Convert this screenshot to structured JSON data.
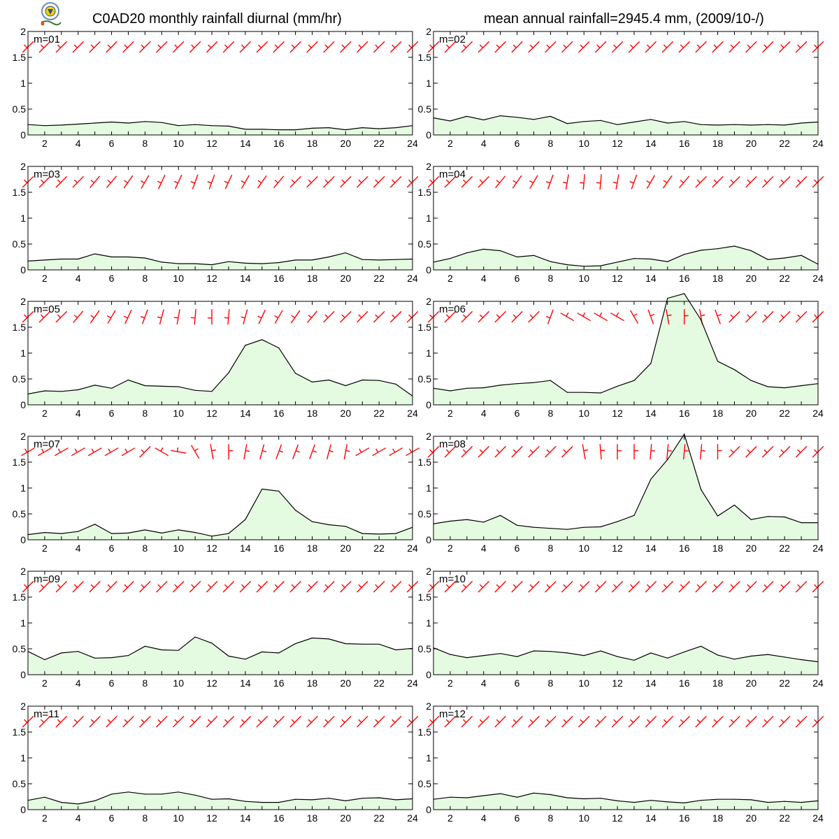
{
  "header": {
    "title_left": "C0AD20 monthly rainfall diurnal (mm/hr)",
    "title_right": "mean annual rainfall=2945.4 mm, (2009/10-/)"
  },
  "colors": {
    "fill": "#e5fbe1",
    "line": "#000000",
    "wind": "#ff0000",
    "axis": "#000000"
  },
  "chart_data": [
    {
      "type": "area",
      "label": "m=01",
      "x": [
        1,
        2,
        3,
        4,
        5,
        6,
        7,
        8,
        9,
        10,
        11,
        12,
        13,
        14,
        15,
        16,
        17,
        18,
        19,
        20,
        21,
        22,
        23,
        24
      ],
      "values": [
        0.2,
        0.18,
        0.19,
        0.21,
        0.23,
        0.25,
        0.23,
        0.26,
        0.24,
        0.18,
        0.2,
        0.18,
        0.17,
        0.11,
        0.11,
        0.1,
        0.1,
        0.13,
        0.14,
        0.1,
        0.14,
        0.12,
        0.14,
        0.18
      ],
      "ylim": [
        0,
        2
      ],
      "yticks": [
        0,
        0.5,
        1,
        1.5,
        2
      ],
      "xticks": [
        2,
        4,
        6,
        8,
        10,
        12,
        14,
        16,
        18,
        20,
        22,
        24
      ],
      "wind_dir_deg": [
        225,
        225,
        225,
        225,
        225,
        225,
        225,
        225,
        225,
        225,
        225,
        225,
        225,
        225,
        225,
        225,
        225,
        225,
        225,
        225,
        225,
        225,
        225,
        225
      ]
    },
    {
      "type": "area",
      "label": "m=02",
      "x": [
        1,
        2,
        3,
        4,
        5,
        6,
        7,
        8,
        9,
        10,
        11,
        12,
        13,
        14,
        15,
        16,
        17,
        18,
        19,
        20,
        21,
        22,
        23,
        24
      ],
      "values": [
        0.33,
        0.27,
        0.36,
        0.29,
        0.37,
        0.34,
        0.3,
        0.36,
        0.22,
        0.26,
        0.28,
        0.2,
        0.25,
        0.3,
        0.23,
        0.26,
        0.2,
        0.19,
        0.2,
        0.19,
        0.2,
        0.19,
        0.23,
        0.25
      ],
      "ylim": [
        0,
        2
      ],
      "yticks": [
        0,
        0.5,
        1,
        1.5,
        2
      ],
      "xticks": [
        2,
        4,
        6,
        8,
        10,
        12,
        14,
        16,
        18,
        20,
        22,
        24
      ],
      "wind_dir_deg": [
        225,
        225,
        225,
        225,
        225,
        225,
        225,
        225,
        225,
        225,
        225,
        225,
        225,
        225,
        225,
        225,
        225,
        225,
        225,
        225,
        225,
        225,
        225,
        225
      ]
    },
    {
      "type": "area",
      "label": "m=03",
      "x": [
        1,
        2,
        3,
        4,
        5,
        6,
        7,
        8,
        9,
        10,
        11,
        12,
        13,
        14,
        15,
        16,
        17,
        18,
        19,
        20,
        21,
        22,
        23,
        24
      ],
      "values": [
        0.17,
        0.19,
        0.21,
        0.21,
        0.31,
        0.25,
        0.25,
        0.23,
        0.15,
        0.12,
        0.12,
        0.1,
        0.16,
        0.13,
        0.12,
        0.14,
        0.19,
        0.19,
        0.25,
        0.33,
        0.2,
        0.19,
        0.2,
        0.21
      ],
      "ylim": [
        0,
        2
      ],
      "yticks": [
        0,
        0.5,
        1,
        1.5,
        2
      ],
      "xticks": [
        2,
        4,
        6,
        8,
        10,
        12,
        14,
        16,
        18,
        20,
        22,
        24
      ],
      "wind_dir_deg": [
        225,
        225,
        225,
        225,
        220,
        220,
        215,
        210,
        205,
        205,
        200,
        200,
        205,
        210,
        215,
        220,
        225,
        225,
        225,
        225,
        225,
        225,
        225,
        225
      ]
    },
    {
      "type": "area",
      "label": "m=04",
      "x": [
        1,
        2,
        3,
        4,
        5,
        6,
        7,
        8,
        9,
        10,
        11,
        12,
        13,
        14,
        15,
        16,
        17,
        18,
        19,
        20,
        21,
        22,
        23,
        24
      ],
      "values": [
        0.15,
        0.22,
        0.33,
        0.4,
        0.37,
        0.25,
        0.28,
        0.16,
        0.1,
        0.07,
        0.08,
        0.15,
        0.22,
        0.21,
        0.16,
        0.3,
        0.38,
        0.41,
        0.46,
        0.37,
        0.2,
        0.23,
        0.28,
        0.11
      ],
      "ylim": [
        0,
        2
      ],
      "yticks": [
        0,
        0.5,
        1,
        1.5,
        2
      ],
      "xticks": [
        2,
        4,
        6,
        8,
        10,
        12,
        14,
        16,
        18,
        20,
        22,
        24
      ],
      "wind_dir_deg": [
        225,
        225,
        225,
        225,
        220,
        215,
        210,
        200,
        190,
        185,
        185,
        190,
        200,
        210,
        215,
        220,
        225,
        225,
        225,
        225,
        225,
        225,
        225,
        225
      ]
    },
    {
      "type": "area",
      "label": "m=05",
      "x": [
        1,
        2,
        3,
        4,
        5,
        6,
        7,
        8,
        9,
        10,
        11,
        12,
        13,
        14,
        15,
        16,
        17,
        18,
        19,
        20,
        21,
        22,
        23,
        24
      ],
      "values": [
        0.21,
        0.27,
        0.26,
        0.29,
        0.38,
        0.32,
        0.48,
        0.37,
        0.36,
        0.35,
        0.28,
        0.26,
        0.62,
        1.15,
        1.26,
        1.1,
        0.61,
        0.44,
        0.48,
        0.37,
        0.48,
        0.47,
        0.4,
        0.17
      ],
      "ylim": [
        0,
        2
      ],
      "yticks": [
        0,
        0.5,
        1,
        1.5,
        2
      ],
      "xticks": [
        2,
        4,
        6,
        8,
        10,
        12,
        14,
        16,
        18,
        20,
        22,
        24
      ],
      "wind_dir_deg": [
        225,
        225,
        225,
        220,
        215,
        210,
        205,
        200,
        195,
        190,
        185,
        180,
        185,
        195,
        205,
        210,
        215,
        220,
        225,
        225,
        225,
        225,
        225,
        225
      ]
    },
    {
      "type": "area",
      "label": "m=06",
      "x": [
        1,
        2,
        3,
        4,
        5,
        6,
        7,
        8,
        9,
        10,
        11,
        12,
        13,
        14,
        15,
        16,
        17,
        18,
        19,
        20,
        21,
        22,
        23,
        24
      ],
      "values": [
        0.32,
        0.27,
        0.32,
        0.33,
        0.38,
        0.41,
        0.43,
        0.47,
        0.24,
        0.24,
        0.23,
        0.36,
        0.47,
        0.8,
        2.06,
        2.15,
        1.64,
        0.84,
        0.68,
        0.47,
        0.35,
        0.33,
        0.37,
        0.41
      ],
      "ylim": [
        0,
        2
      ],
      "yticks": [
        0,
        0.5,
        1,
        1.5,
        2
      ],
      "xticks": [
        2,
        4,
        6,
        8,
        10,
        12,
        14,
        16,
        18,
        20,
        22,
        24
      ],
      "wind_dir_deg": [
        225,
        225,
        225,
        225,
        225,
        225,
        225,
        200,
        300,
        300,
        300,
        300,
        330,
        340,
        350,
        0,
        350,
        340,
        225,
        225,
        225,
        225,
        225,
        225
      ]
    },
    {
      "type": "area",
      "label": "m=07",
      "x": [
        1,
        2,
        3,
        4,
        5,
        6,
        7,
        8,
        9,
        10,
        11,
        12,
        13,
        14,
        15,
        16,
        17,
        18,
        19,
        20,
        21,
        22,
        23,
        24
      ],
      "values": [
        0.1,
        0.14,
        0.12,
        0.16,
        0.3,
        0.12,
        0.13,
        0.19,
        0.13,
        0.19,
        0.14,
        0.07,
        0.12,
        0.39,
        0.98,
        0.94,
        0.57,
        0.35,
        0.29,
        0.26,
        0.12,
        0.11,
        0.12,
        0.24
      ],
      "ylim": [
        0,
        2
      ],
      "yticks": [
        0,
        0.5,
        1,
        1.5,
        2
      ],
      "xticks": [
        2,
        4,
        6,
        8,
        10,
        12,
        14,
        16,
        18,
        20,
        22,
        24
      ],
      "wind_dir_deg": [
        240,
        240,
        240,
        240,
        240,
        240,
        240,
        225,
        300,
        280,
        330,
        350,
        0,
        10,
        15,
        20,
        20,
        20,
        15,
        10,
        240,
        240,
        240,
        240
      ]
    },
    {
      "type": "area",
      "label": "m=08",
      "x": [
        1,
        2,
        3,
        4,
        5,
        6,
        7,
        8,
        9,
        10,
        11,
        12,
        13,
        14,
        15,
        16,
        17,
        18,
        19,
        20,
        21,
        22,
        23,
        24
      ],
      "values": [
        0.31,
        0.36,
        0.39,
        0.34,
        0.47,
        0.28,
        0.24,
        0.22,
        0.2,
        0.24,
        0.25,
        0.35,
        0.47,
        1.17,
        1.55,
        2.04,
        0.97,
        0.46,
        0.67,
        0.39,
        0.45,
        0.44,
        0.33,
        0.33
      ],
      "ylim": [
        0,
        2
      ],
      "yticks": [
        0,
        0.5,
        1,
        1.5,
        2
      ],
      "xticks": [
        2,
        4,
        6,
        8,
        10,
        12,
        14,
        16,
        18,
        20,
        22,
        24
      ],
      "wind_dir_deg": [
        225,
        225,
        225,
        225,
        225,
        225,
        225,
        225,
        225,
        350,
        355,
        0,
        0,
        5,
        5,
        5,
        5,
        0,
        225,
        225,
        225,
        225,
        225,
        225
      ]
    },
    {
      "type": "area",
      "label": "m=09",
      "x": [
        1,
        2,
        3,
        4,
        5,
        6,
        7,
        8,
        9,
        10,
        11,
        12,
        13,
        14,
        15,
        16,
        17,
        18,
        19,
        20,
        21,
        22,
        23,
        24
      ],
      "values": [
        0.45,
        0.29,
        0.42,
        0.45,
        0.32,
        0.33,
        0.37,
        0.55,
        0.48,
        0.47,
        0.73,
        0.61,
        0.36,
        0.3,
        0.44,
        0.42,
        0.6,
        0.71,
        0.69,
        0.6,
        0.59,
        0.59,
        0.48,
        0.51
      ],
      "ylim": [
        0,
        2
      ],
      "yticks": [
        0,
        0.5,
        1,
        1.5,
        2
      ],
      "xticks": [
        2,
        4,
        6,
        8,
        10,
        12,
        14,
        16,
        18,
        20,
        22,
        24
      ],
      "wind_dir_deg": [
        225,
        225,
        225,
        225,
        225,
        225,
        225,
        225,
        225,
        225,
        225,
        225,
        225,
        225,
        225,
        225,
        225,
        225,
        225,
        225,
        225,
        225,
        225,
        225
      ]
    },
    {
      "type": "area",
      "label": "m=10",
      "x": [
        1,
        2,
        3,
        4,
        5,
        6,
        7,
        8,
        9,
        10,
        11,
        12,
        13,
        14,
        15,
        16,
        17,
        18,
        19,
        20,
        21,
        22,
        23,
        24
      ],
      "values": [
        0.52,
        0.39,
        0.33,
        0.37,
        0.41,
        0.35,
        0.46,
        0.45,
        0.42,
        0.37,
        0.46,
        0.35,
        0.28,
        0.42,
        0.32,
        0.44,
        0.55,
        0.38,
        0.3,
        0.36,
        0.39,
        0.34,
        0.29,
        0.25
      ],
      "ylim": [
        0,
        2
      ],
      "yticks": [
        0,
        0.5,
        1,
        1.5,
        2
      ],
      "xticks": [
        2,
        4,
        6,
        8,
        10,
        12,
        14,
        16,
        18,
        20,
        22,
        24
      ],
      "wind_dir_deg": [
        225,
        225,
        225,
        225,
        225,
        225,
        225,
        225,
        225,
        225,
        225,
        225,
        225,
        225,
        225,
        225,
        225,
        225,
        225,
        225,
        225,
        225,
        225,
        225
      ]
    },
    {
      "type": "area",
      "label": "m=11",
      "x": [
        1,
        2,
        3,
        4,
        5,
        6,
        7,
        8,
        9,
        10,
        11,
        12,
        13,
        14,
        15,
        16,
        17,
        18,
        19,
        20,
        21,
        22,
        23,
        24
      ],
      "values": [
        0.18,
        0.24,
        0.14,
        0.11,
        0.17,
        0.3,
        0.34,
        0.3,
        0.3,
        0.34,
        0.28,
        0.2,
        0.21,
        0.16,
        0.14,
        0.14,
        0.2,
        0.19,
        0.22,
        0.17,
        0.22,
        0.23,
        0.19,
        0.21
      ],
      "ylim": [
        0,
        2
      ],
      "yticks": [
        0,
        0.5,
        1,
        1.5,
        2
      ],
      "xticks": [
        2,
        4,
        6,
        8,
        10,
        12,
        14,
        16,
        18,
        20,
        22,
        24
      ],
      "wind_dir_deg": [
        225,
        225,
        225,
        225,
        225,
        225,
        225,
        225,
        225,
        225,
        225,
        225,
        225,
        225,
        225,
        225,
        225,
        225,
        225,
        225,
        225,
        225,
        225,
        225
      ]
    },
    {
      "type": "area",
      "label": "m=12",
      "x": [
        1,
        2,
        3,
        4,
        5,
        6,
        7,
        8,
        9,
        10,
        11,
        12,
        13,
        14,
        15,
        16,
        17,
        18,
        19,
        20,
        21,
        22,
        23,
        24
      ],
      "values": [
        0.2,
        0.24,
        0.23,
        0.27,
        0.31,
        0.24,
        0.32,
        0.29,
        0.23,
        0.21,
        0.22,
        0.17,
        0.14,
        0.18,
        0.15,
        0.13,
        0.18,
        0.2,
        0.2,
        0.19,
        0.14,
        0.16,
        0.14,
        0.17
      ],
      "ylim": [
        0,
        2
      ],
      "yticks": [
        0,
        0.5,
        1,
        1.5,
        2
      ],
      "xticks": [
        2,
        4,
        6,
        8,
        10,
        12,
        14,
        16,
        18,
        20,
        22,
        24
      ],
      "wind_dir_deg": [
        225,
        225,
        225,
        225,
        225,
        225,
        225,
        225,
        225,
        225,
        225,
        225,
        225,
        225,
        225,
        225,
        225,
        225,
        225,
        225,
        225,
        225,
        225,
        225
      ]
    }
  ]
}
